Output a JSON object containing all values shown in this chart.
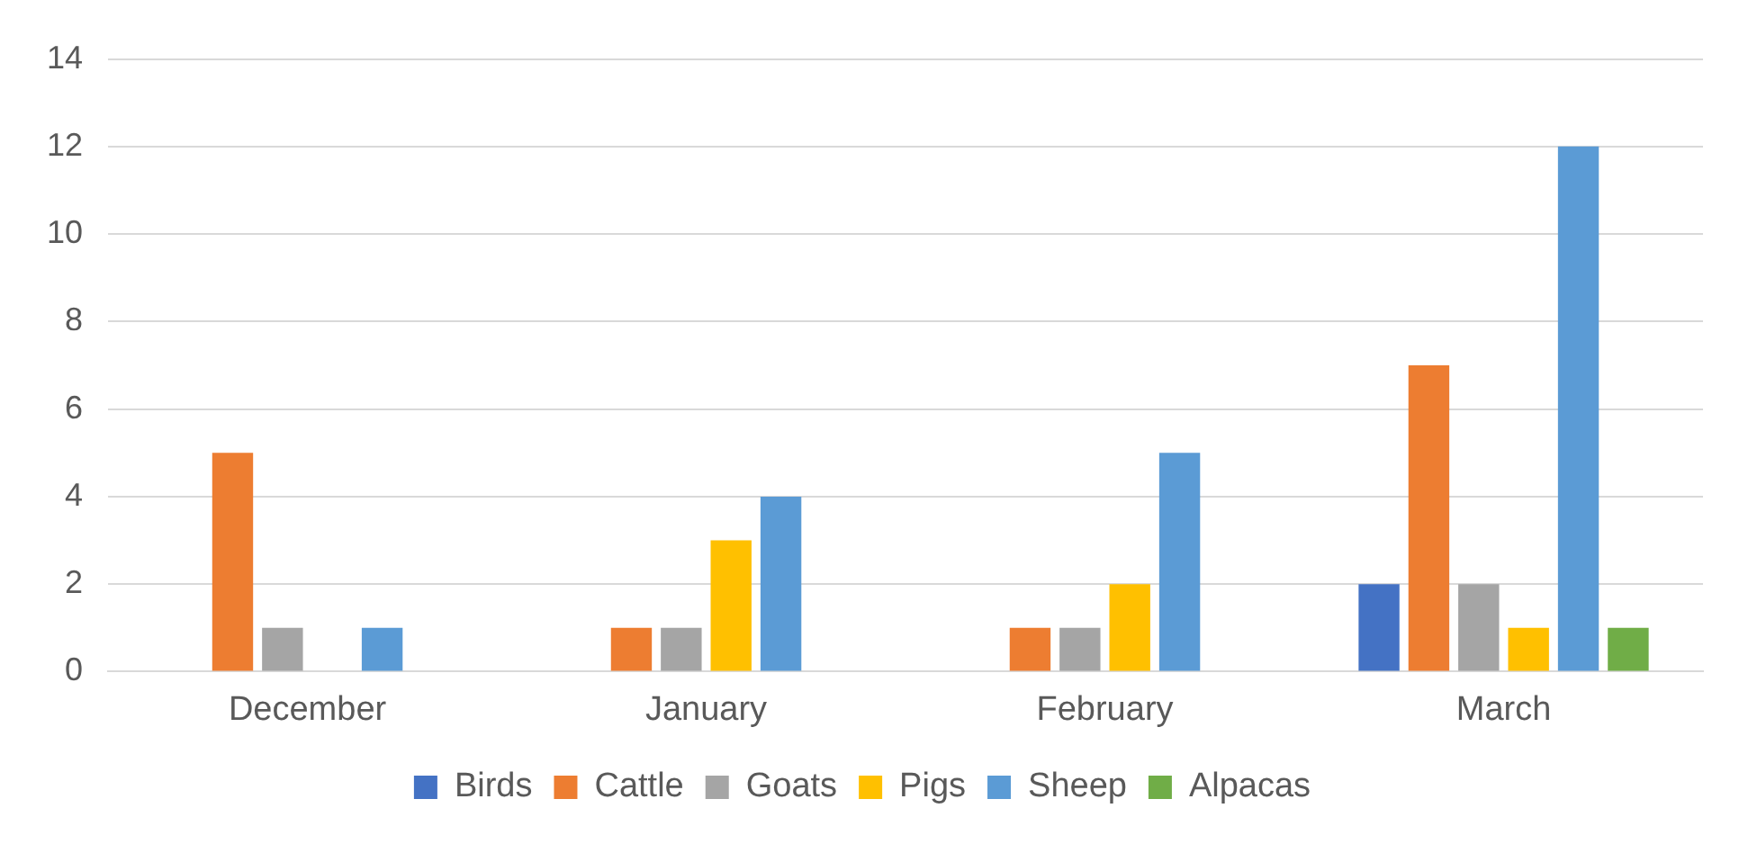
{
  "chart_data": {
    "type": "bar",
    "categories": [
      "December",
      "January",
      "February",
      "March"
    ],
    "series": [
      {
        "name": "Birds",
        "color": "#4472c4",
        "values": [
          null,
          null,
          null,
          2
        ]
      },
      {
        "name": "Cattle",
        "color": "#ed7d31",
        "values": [
          5,
          1,
          1,
          7
        ]
      },
      {
        "name": "Goats",
        "color": "#a5a5a5",
        "values": [
          1,
          1,
          1,
          2
        ]
      },
      {
        "name": "Pigs",
        "color": "#ffc000",
        "values": [
          null,
          3,
          2,
          1
        ]
      },
      {
        "name": "Sheep",
        "color": "#5b9bd5",
        "values": [
          1,
          4,
          5,
          12
        ]
      },
      {
        "name": "Alpacas",
        "color": "#70ad47",
        "values": [
          null,
          null,
          null,
          1
        ]
      }
    ],
    "ylim": [
      0,
      14
    ],
    "yticks": [
      0,
      2,
      4,
      6,
      8,
      10,
      12,
      14
    ],
    "grid": "y",
    "legend": "bottom"
  }
}
